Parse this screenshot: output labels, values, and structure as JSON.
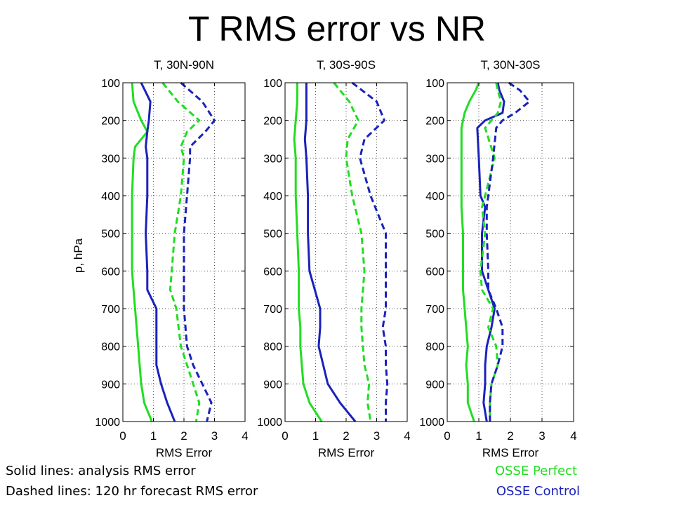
{
  "slide": {
    "title": "T RMS error vs NR",
    "note_solid": "Solid lines: analysis RMS error",
    "note_dashed": "Dashed lines: 120 hr forecast RMS error",
    "legend_perfect": "OSSE Perfect",
    "legend_control": "OSSE Control"
  },
  "colors": {
    "osse_perfect": "#22dd22",
    "osse_control": "#1a22bb"
  },
  "chart_data": [
    {
      "type": "line",
      "title": "T, 30N-90N",
      "xlabel": "RMS Error",
      "ylabel": "p, hPa",
      "xlim": [
        0,
        4
      ],
      "ylim": [
        1000,
        100
      ],
      "xticks": [
        0,
        1,
        2,
        3,
        4
      ],
      "yticks": [
        100,
        200,
        300,
        400,
        500,
        600,
        700,
        800,
        900,
        1000
      ],
      "grid": true,
      "p": [
        100,
        150,
        200,
        230,
        270,
        300,
        400,
        500,
        600,
        650,
        700,
        800,
        850,
        900,
        950,
        1000
      ],
      "series": [
        {
          "name": "OSSE Perfect",
          "style": "solid",
          "values": [
            0.3,
            0.35,
            0.6,
            0.8,
            0.4,
            0.35,
            0.3,
            0.3,
            0.3,
            0.35,
            0.4,
            0.5,
            0.55,
            0.6,
            0.7,
            0.95
          ]
        },
        {
          "name": "OSSE Control",
          "style": "solid",
          "values": [
            0.6,
            0.9,
            0.85,
            0.8,
            0.75,
            0.8,
            0.8,
            0.75,
            0.8,
            0.8,
            1.1,
            1.1,
            1.1,
            1.25,
            1.45,
            1.7
          ]
        },
        {
          "name": "OSSE Perfect",
          "style": "dashed",
          "values": [
            1.3,
            1.8,
            2.5,
            2.1,
            1.9,
            2.0,
            1.9,
            1.7,
            1.6,
            1.55,
            1.75,
            1.9,
            2.1,
            2.3,
            2.5,
            2.4
          ]
        },
        {
          "name": "OSSE Control",
          "style": "dashed",
          "values": [
            1.9,
            2.6,
            3.0,
            2.7,
            2.2,
            2.2,
            2.1,
            2.0,
            2.0,
            2.0,
            2.0,
            2.1,
            2.3,
            2.6,
            2.9,
            2.75
          ]
        }
      ]
    },
    {
      "type": "line",
      "title": "T, 30S-90S",
      "xlabel": "RMS Error",
      "ylabel": "",
      "xlim": [
        0,
        4
      ],
      "ylim": [
        1000,
        100
      ],
      "xticks": [
        0,
        1,
        2,
        3,
        4
      ],
      "yticks": [
        100,
        200,
        300,
        400,
        500,
        600,
        700,
        800,
        900,
        1000
      ],
      "grid": true,
      "p": [
        100,
        150,
        200,
        250,
        300,
        400,
        500,
        600,
        700,
        750,
        800,
        850,
        900,
        950,
        1000
      ],
      "series": [
        {
          "name": "OSSE Perfect",
          "style": "solid",
          "values": [
            0.4,
            0.4,
            0.35,
            0.3,
            0.35,
            0.35,
            0.4,
            0.45,
            0.45,
            0.5,
            0.5,
            0.55,
            0.6,
            0.8,
            1.2
          ]
        },
        {
          "name": "OSSE Control",
          "style": "solid",
          "values": [
            0.7,
            0.7,
            0.7,
            0.65,
            0.7,
            0.75,
            0.75,
            0.8,
            1.15,
            1.15,
            1.1,
            1.25,
            1.4,
            1.8,
            2.3
          ]
        },
        {
          "name": "OSSE Perfect",
          "style": "dashed",
          "values": [
            1.6,
            2.1,
            2.4,
            2.05,
            2.0,
            2.2,
            2.5,
            2.6,
            2.5,
            2.5,
            2.55,
            2.6,
            2.75,
            2.7,
            2.8
          ]
        },
        {
          "name": "OSSE Control",
          "style": "dashed",
          "values": [
            2.2,
            3.0,
            3.25,
            2.6,
            2.45,
            2.8,
            3.3,
            3.3,
            3.3,
            3.2,
            3.3,
            3.3,
            3.35,
            3.3,
            3.3
          ]
        }
      ]
    },
    {
      "type": "line",
      "title": "T, 30N-30S",
      "xlabel": "RMS Error",
      "ylabel": "",
      "xlim": [
        0,
        4
      ],
      "ylim": [
        1000,
        100
      ],
      "xticks": [
        0,
        1,
        2,
        3,
        4
      ],
      "yticks": [
        100,
        200,
        300,
        400,
        500,
        600,
        700,
        800,
        900,
        1000
      ],
      "grid": true,
      "p": [
        100,
        120,
        150,
        180,
        200,
        220,
        300,
        400,
        430,
        500,
        600,
        650,
        700,
        750,
        800,
        850,
        900,
        950,
        1000
      ],
      "series": [
        {
          "name": "OSSE Perfect",
          "style": "solid",
          "values": [
            1.0,
            0.9,
            0.7,
            0.55,
            0.5,
            0.45,
            0.45,
            0.45,
            0.45,
            0.5,
            0.5,
            0.5,
            0.55,
            0.6,
            0.65,
            0.6,
            0.65,
            0.65,
            0.85
          ]
        },
        {
          "name": "OSSE Control",
          "style": "solid",
          "values": [
            1.6,
            1.65,
            1.8,
            1.75,
            1.2,
            0.95,
            1.0,
            1.05,
            1.2,
            1.1,
            1.1,
            1.3,
            1.5,
            1.4,
            1.25,
            1.2,
            1.2,
            1.15,
            1.25
          ]
        },
        {
          "name": "OSSE Perfect",
          "style": "dashed",
          "values": [
            1.55,
            1.6,
            1.7,
            1.6,
            1.4,
            1.2,
            1.5,
            1.2,
            1.1,
            1.2,
            1.05,
            1.1,
            1.45,
            1.3,
            1.55,
            1.6,
            1.4,
            1.35,
            1.35
          ]
        },
        {
          "name": "OSSE Control",
          "style": "dashed",
          "values": [
            1.95,
            2.3,
            2.6,
            2.15,
            1.75,
            1.55,
            1.45,
            1.3,
            1.25,
            1.25,
            1.3,
            1.3,
            1.55,
            1.75,
            1.75,
            1.6,
            1.4,
            1.35,
            1.35
          ]
        }
      ]
    }
  ]
}
